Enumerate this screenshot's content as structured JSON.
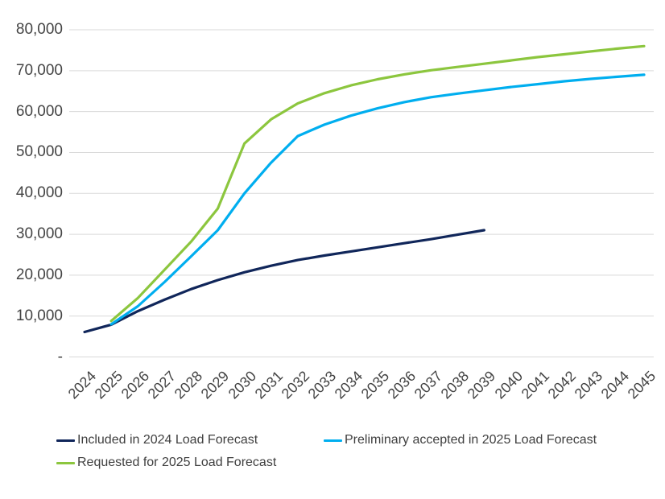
{
  "chart_data": {
    "type": "line",
    "title": "",
    "xlabel": "",
    "ylabel": "",
    "grid": "horizontal",
    "legend_position": "bottom-left",
    "x_labels": [
      "2024",
      "2025",
      "2026",
      "2027",
      "2028",
      "2029",
      "2030",
      "2031",
      "2032",
      "2033",
      "2034",
      "2035",
      "2036",
      "2037",
      "2038",
      "2039",
      "2040",
      "2041",
      "2042",
      "2043",
      "2044",
      "2045"
    ],
    "y_axis": {
      "min": 0,
      "max": 80000,
      "tick_interval": 10000,
      "tick_labels": [
        "-",
        "10,000",
        "20,000",
        "30,000",
        "40,000",
        "50,000",
        "60,000",
        "70,000",
        "80,000"
      ]
    },
    "colors": {
      "grid": "#d9d9d9",
      "axis_text": "#444444",
      "navy": "#10265a",
      "cyan": "#00aeef",
      "green": "#8cc63e"
    },
    "series": [
      {
        "name": "Included in 2024 Load Forecast",
        "color": "#10265a",
        "values": [
          6100,
          7900,
          11200,
          14000,
          16600,
          18800,
          20700,
          22300,
          23700,
          24800,
          25800,
          26800,
          27800,
          28800,
          29900,
          31000,
          null,
          null,
          null,
          null,
          null,
          null
        ]
      },
      {
        "name": "Preliminary accepted in 2025 Load Forecast",
        "color": "#00aeef",
        "values": [
          null,
          8000,
          12400,
          18300,
          24600,
          31000,
          40000,
          47500,
          54000,
          56800,
          59000,
          60800,
          62300,
          63500,
          64400,
          65200,
          66000,
          66700,
          67400,
          68000,
          68500,
          69000
        ]
      },
      {
        "name": "Requested for 2025 Load Forecast",
        "color": "#8cc63e",
        "values": [
          null,
          8800,
          14400,
          21300,
          28200,
          36300,
          52200,
          58100,
          62000,
          64500,
          66400,
          67900,
          69100,
          70100,
          70900,
          71700,
          72500,
          73300,
          74000,
          74700,
          75400,
          76000
        ]
      }
    ]
  }
}
